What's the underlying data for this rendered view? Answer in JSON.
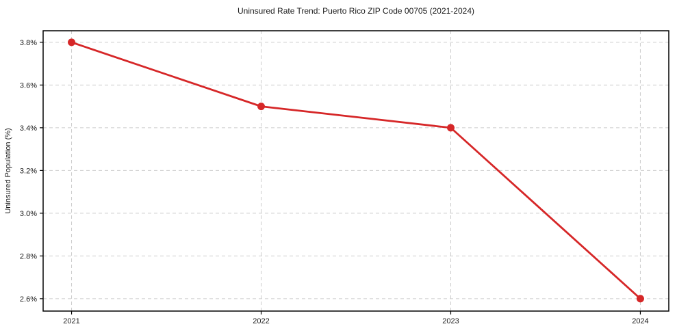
{
  "chart_data": {
    "type": "line",
    "title": "Uninsured Rate Trend: Puerto Rico ZIP Code 00705 (2021-2024)",
    "xlabel": "",
    "ylabel": "Uninsured Population (%)",
    "x": [
      2021,
      2022,
      2023,
      2024
    ],
    "categories": [
      "2021",
      "2022",
      "2023",
      "2024"
    ],
    "series": [
      {
        "name": "Uninsured Population (%)",
        "values": [
          3.8,
          3.5,
          3.4,
          2.6
        ]
      }
    ],
    "xticks": [
      2021,
      2022,
      2023,
      2024
    ],
    "xtick_labels": [
      "2021",
      "2022",
      "2023",
      "2024"
    ],
    "yticks": [
      2.6,
      2.8,
      3.0,
      3.2,
      3.4,
      3.6,
      3.8
    ],
    "ytick_labels": [
      "2.6%",
      "2.8%",
      "3.0%",
      "3.2%",
      "3.4%",
      "3.6%",
      "3.8%"
    ],
    "xlim": [
      2020.85,
      2024.15
    ],
    "ylim": [
      2.542,
      3.854
    ],
    "grid": true,
    "legend": "none",
    "colors": {
      "line": "#d62728",
      "marker": "#d62728",
      "grid": "#cccccc",
      "spine": "#000000",
      "tick": "#000000",
      "text": "#1a1a1a",
      "background": "#ffffff"
    }
  }
}
